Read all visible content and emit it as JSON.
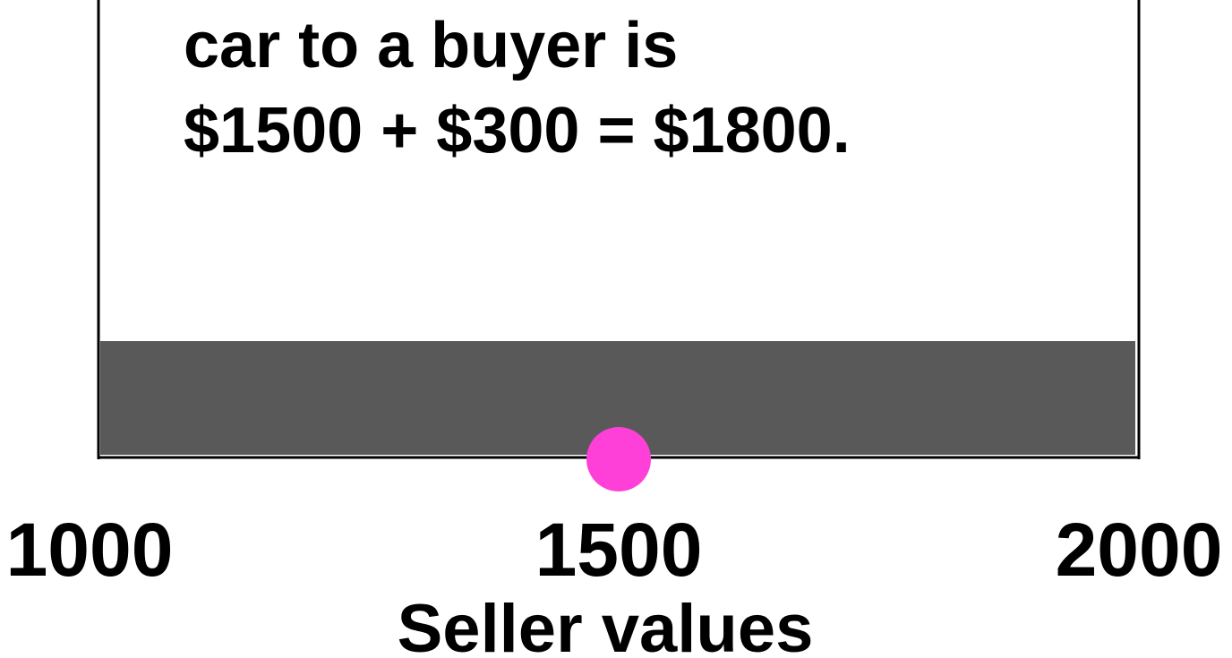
{
  "chart_data": {
    "type": "scatter",
    "annotation": [
      "car to a buyer is",
      "$1500 + $300 = $1800."
    ],
    "band": [
      1000,
      2000
    ],
    "band_color": "#595959",
    "x": [
      1500
    ],
    "color": "#ff40d8",
    "xlim": [
      1000,
      2000
    ],
    "xticks": [
      1000,
      1500,
      2000
    ],
    "xlabel": "Seller values"
  }
}
